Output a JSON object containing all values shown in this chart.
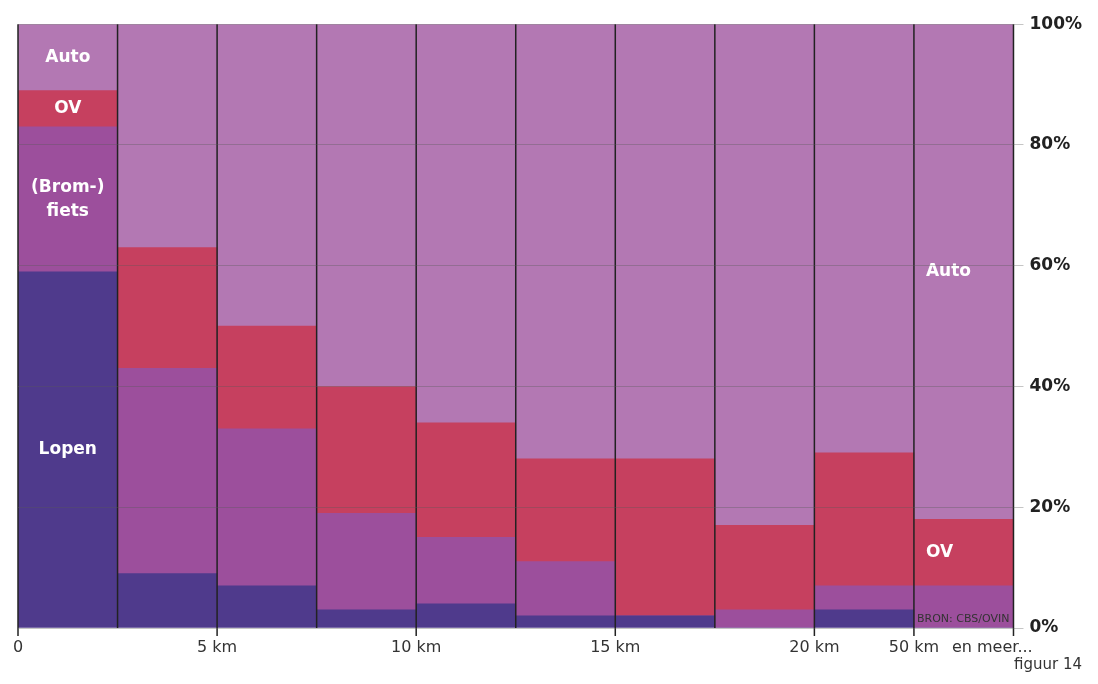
{
  "chart_data": {
    "type": "bar",
    "stacked": true,
    "categories": [
      null,
      null,
      null,
      null,
      null,
      null,
      null,
      null,
      null,
      null
    ],
    "series": [
      {
        "name": "Lopen",
        "color": "#4f3a8c",
        "values": [
          59,
          9,
          7,
          3,
          4,
          2,
          2,
          0,
          3,
          0
        ]
      },
      {
        "name": "(Brom-)fiets",
        "color": "#9c4f9c",
        "values": [
          24,
          34,
          26,
          16,
          11,
          9,
          0,
          3,
          4,
          7
        ]
      },
      {
        "name": "OV",
        "color": "#c6405f",
        "values": [
          6,
          20,
          17,
          21,
          19,
          17,
          26,
          14,
          22,
          11
        ]
      },
      {
        "name": "Auto",
        "color": "#b378b3",
        "values": [
          11,
          37,
          50,
          60,
          66,
          72,
          72,
          83,
          71,
          82
        ]
      }
    ],
    "ylim": [
      0,
      100
    ],
    "yticks": [
      {
        "value": 0,
        "label": "0%"
      },
      {
        "value": 20,
        "label": "20%"
      },
      {
        "value": 40,
        "label": "40%"
      },
      {
        "value": 60,
        "label": "60%"
      },
      {
        "value": 80,
        "label": "80%"
      },
      {
        "value": 100,
        "label": "100%"
      }
    ],
    "grid": "y",
    "legend": false,
    "annotations": [
      "0",
      "5 km",
      "10 km",
      "15 km",
      "20 km",
      "50 km",
      "en meer...",
      "BRON: CBS/OVIN",
      "figuur 14"
    ]
  }
}
